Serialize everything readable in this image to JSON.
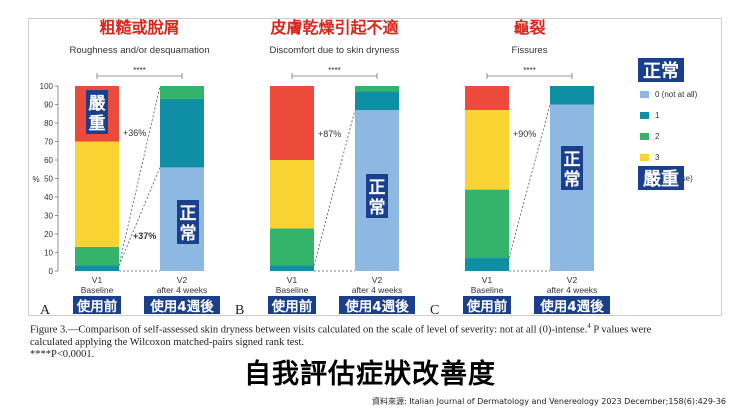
{
  "caption": {
    "line1": "Figure 3.—Comparison of self-assessed skin dryness between visits calculated on the scale of level of severity: not at all (0)-intense.",
    "sup": "4",
    "line1_tail": " P values were",
    "line2": "calculated applying the Wilcoxon matched-pairs signed rank test.",
    "line3": "****P<0.0001."
  },
  "main_title": "自我評估症狀改善度",
  "source": "資料來源: Italian Journal of Dermatology and Venereology 2023 December;158(6):429-36",
  "legend": {
    "top_label": "正常",
    "bottom_label": "嚴重",
    "items": [
      {
        "label": "0 (not at all)",
        "color": "#8db8e2"
      },
      {
        "label": "1",
        "color": "#0f8fa6"
      },
      {
        "label": "2",
        "color": "#34b36b"
      },
      {
        "label": "3",
        "color": "#f9d332"
      },
      {
        "label": "4 (intense)",
        "color": "#ec4b3b"
      }
    ]
  },
  "y_axis": {
    "label": "%",
    "ticks": [
      0,
      10,
      20,
      30,
      40,
      50,
      60,
      70,
      80,
      90,
      100
    ],
    "ylim": [
      0,
      100
    ]
  },
  "chart_data": [
    {
      "type": "bar",
      "stacked": true,
      "panel_letter": "A",
      "title_zh": "粗糙或脫屑",
      "title": "Roughness and/or desquamation",
      "significance": "****",
      "categories": [
        {
          "code": "V1",
          "sub": "Baseline",
          "zh": "使用前"
        },
        {
          "code": "V2",
          "sub": "after 4 weeks",
          "zh": "使用4週後"
        }
      ],
      "series": [
        {
          "name": "0 (not at all)",
          "values": [
            0,
            56
          ]
        },
        {
          "name": "1",
          "values": [
            3,
            37
          ]
        },
        {
          "name": "2",
          "values": [
            10,
            7
          ]
        },
        {
          "name": "3",
          "values": [
            57,
            0
          ]
        },
        {
          "name": "4 (intense)",
          "values": [
            30,
            0
          ]
        }
      ],
      "annotations": [
        "+36%",
        "+37%"
      ],
      "overlay_labels": {
        "bar1": "嚴重",
        "bar2": "正常"
      }
    },
    {
      "type": "bar",
      "stacked": true,
      "panel_letter": "B",
      "title_zh": "皮膚乾燥引起不適",
      "title": "Discomfort due to skin dryness",
      "significance": "****",
      "categories": [
        {
          "code": "V1",
          "sub": "Baseline",
          "zh": "使用前"
        },
        {
          "code": "V2",
          "sub": "after 4 weeks",
          "zh": "使用4週後"
        }
      ],
      "series": [
        {
          "name": "0 (not at all)",
          "values": [
            0,
            87
          ]
        },
        {
          "name": "1",
          "values": [
            3,
            10
          ]
        },
        {
          "name": "2",
          "values": [
            20,
            3
          ]
        },
        {
          "name": "3",
          "values": [
            37,
            0
          ]
        },
        {
          "name": "4 (intense)",
          "values": [
            40,
            0
          ]
        }
      ],
      "annotations": [
        "+87%"
      ],
      "overlay_labels": {
        "bar2": "正常"
      }
    },
    {
      "type": "bar",
      "stacked": true,
      "panel_letter": "C",
      "title_zh": "龜裂",
      "title": "Fissures",
      "significance": "****",
      "categories": [
        {
          "code": "V1",
          "sub": "Baseline",
          "zh": "使用前"
        },
        {
          "code": "V2",
          "sub": "after 4 weeks",
          "zh": "使用4週後"
        }
      ],
      "series": [
        {
          "name": "0 (not at all)",
          "values": [
            0,
            90
          ]
        },
        {
          "name": "1",
          "values": [
            7,
            10
          ]
        },
        {
          "name": "2",
          "values": [
            37,
            0
          ]
        },
        {
          "name": "3",
          "values": [
            43,
            0
          ]
        },
        {
          "name": "4 (intense)",
          "values": [
            13,
            0
          ]
        }
      ],
      "annotations": [
        "+90%"
      ],
      "overlay_labels": {
        "bar2": "正常"
      }
    }
  ]
}
